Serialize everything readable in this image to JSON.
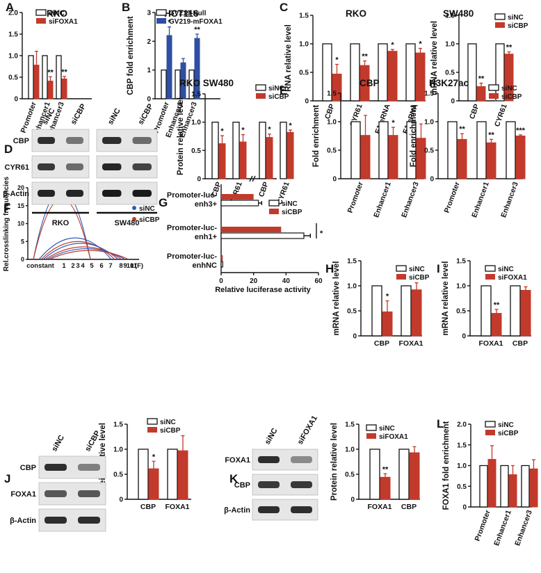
{
  "colors": {
    "white_bar": "#ffffff",
    "red_bar": "#c23a2b",
    "blue_bar": "#2e4fa3",
    "stroke": "#111111",
    "blot_bg": "#e6e6e6",
    "band": "#1a1a1a"
  },
  "chart_data": [
    {
      "id": "A",
      "type": "bar",
      "label": "A",
      "title": "RKO",
      "ylabel": "CBP fold enrichment",
      "ylim": [
        0,
        2
      ],
      "yticks": [
        "0",
        "0.5",
        "1.0",
        "1.5",
        "2.0"
      ],
      "categories": [
        "Promoter",
        "Enhancer1",
        "Enhancer3"
      ],
      "legend": [
        "siNC",
        "siFOXA1"
      ],
      "series": [
        {
          "name": "siNC",
          "values": [
            1.0,
            1.0,
            1.0
          ],
          "err": [
            0,
            0,
            0
          ]
        },
        {
          "name": "siFOXA1",
          "values": [
            0.78,
            0.41,
            0.46
          ],
          "err": [
            0.32,
            0.1,
            0.06
          ]
        }
      ],
      "sig": [
        [
          "",
          "",
          "",
          ""
        ],
        [
          "",
          "**",
          "",
          ""
        ],
        [
          "",
          "**",
          "",
          ""
        ]
      ]
    },
    {
      "id": "B",
      "type": "bar",
      "label": "B",
      "title": "HCT116",
      "ylabel": "CBP fold enrichment",
      "ylim": [
        0,
        3
      ],
      "yticks": [
        "0",
        "1",
        "2",
        "3"
      ],
      "categories": [
        "Promoter",
        "Enhancer1",
        "Enhancer3"
      ],
      "legend": [
        "GV219-Null",
        "GV219-mFOXA1"
      ],
      "series": [
        {
          "name": "GV219-Null",
          "values": [
            1.0,
            1.0,
            1.0
          ],
          "err": [
            0,
            0,
            0
          ]
        },
        {
          "name": "GV219-mFOXA1",
          "values": [
            2.2,
            1.25,
            2.1
          ],
          "err": [
            0.3,
            0.15,
            0.15
          ]
        }
      ],
      "sig": [
        "*",
        "",
        "**"
      ]
    },
    {
      "id": "C1",
      "type": "bar",
      "label": "C",
      "title": "RKO",
      "ylabel": "RNA relative level",
      "ylim": [
        0,
        1.5
      ],
      "yticks": [
        "0",
        "0.5",
        "1.0",
        "1.5"
      ],
      "categories": [
        "CBP",
        "CYR61",
        "E1-eRNA",
        "E1-eRNA"
      ],
      "series": [
        {
          "name": "siNC",
          "values": [
            1,
            1,
            1,
            1
          ],
          "err": [
            0,
            0,
            0,
            0
          ]
        },
        {
          "name": "siCBP",
          "values": [
            0.47,
            0.62,
            0.87,
            0.84
          ],
          "err": [
            0.17,
            0.08,
            0.03,
            0.08
          ]
        }
      ],
      "sig": [
        "*",
        "**",
        "*",
        "*"
      ]
    },
    {
      "id": "C2",
      "type": "bar",
      "label": "",
      "title": "SW480",
      "ylabel": "mRNA relative level",
      "ylim": [
        0,
        1.5
      ],
      "yticks": [
        "0",
        "0.5",
        "1.0",
        "1.5"
      ],
      "categories": [
        "CBP",
        "CYR61"
      ],
      "legend": [
        "siNC",
        "siCBP"
      ],
      "series": [
        {
          "name": "siNC",
          "values": [
            1,
            1
          ],
          "err": [
            0,
            0
          ]
        },
        {
          "name": "siCBP",
          "values": [
            0.25,
            0.82
          ],
          "err": [
            0.06,
            0.04
          ]
        }
      ],
      "sig": [
        "**",
        "**"
      ]
    },
    {
      "id": "D",
      "type": "bar",
      "label": "",
      "title": "RKO   SW480",
      "ylabel": "Protein relative level",
      "ylim": [
        0,
        1.5
      ],
      "yticks": [
        "0",
        "0.5",
        "1.0",
        "1.5"
      ],
      "categories": [
        "CBP",
        "CYR61",
        "CBP",
        "CYR61"
      ],
      "legend": [
        "siNC",
        "siCBP"
      ],
      "series": [
        {
          "name": "siNC",
          "values": [
            1,
            1,
            1,
            1
          ],
          "err": [
            0,
            0,
            0,
            0
          ]
        },
        {
          "name": "siCBP",
          "values": [
            0.62,
            0.65,
            0.73,
            0.82
          ],
          "err": [
            0.14,
            0.13,
            0.06,
            0.04
          ]
        }
      ],
      "sig": [
        "*",
        "*",
        "*",
        "*"
      ]
    },
    {
      "id": "E1",
      "type": "bar",
      "label": "E",
      "title": "CBP",
      "ylabel": "Fold enrichment",
      "ylim": [
        0,
        1.5
      ],
      "yticks": [
        "0",
        "0.5",
        "1.0",
        "1.5"
      ],
      "categories": [
        "Promoter",
        "Enhancer1",
        "Enhancer3"
      ],
      "series": [
        {
          "name": "siNC",
          "values": [
            1,
            1,
            1
          ],
          "err": [
            0,
            0,
            0
          ]
        },
        {
          "name": "siCBP",
          "values": [
            0.76,
            0.76,
            0.71
          ],
          "err": [
            0.35,
            0.14,
            0.25
          ]
        }
      ],
      "sig": [
        "",
        "*",
        ""
      ]
    },
    {
      "id": "E2",
      "type": "bar",
      "label": "",
      "title": "H3K27ac",
      "ylabel": "Fold enrichment",
      "ylim": [
        0,
        1.5
      ],
      "yticks": [
        "0",
        "0.5",
        "1.0",
        "1.5"
      ],
      "categories": [
        "Promoter",
        "Enhancer1",
        "Enhancer3"
      ],
      "legend": [
        "siNC",
        "siCBP"
      ],
      "series": [
        {
          "name": "siNC",
          "values": [
            1,
            1,
            1
          ],
          "err": [
            0,
            0,
            0
          ]
        },
        {
          "name": "siCBP",
          "values": [
            0.69,
            0.63,
            0.75
          ],
          "err": [
            0.1,
            0.06,
            0.02
          ]
        }
      ],
      "sig": [
        "**",
        "**",
        "***"
      ]
    },
    {
      "id": "H",
      "type": "bar",
      "label": "H",
      "title": "",
      "ylabel": "mRNA relative level",
      "ylim": [
        0,
        1.5
      ],
      "yticks": [
        "0",
        "0.5",
        "1.0",
        "1.5"
      ],
      "categories": [
        "CBP",
        "FOXA1"
      ],
      "legend": [
        "siNC",
        "siCBP"
      ],
      "series": [
        {
          "name": "siNC",
          "values": [
            1,
            1
          ],
          "err": [
            0,
            0
          ]
        },
        {
          "name": "siCBP",
          "values": [
            0.48,
            0.92
          ],
          "err": [
            0.22,
            0.14
          ]
        }
      ],
      "sig": [
        "*",
        ""
      ]
    },
    {
      "id": "I",
      "type": "bar",
      "label": "I",
      "title": "",
      "ylabel": "mRNA relative level",
      "ylim": [
        0,
        1.5
      ],
      "yticks": [
        "0",
        "0.5",
        "1.0",
        "1.5"
      ],
      "categories": [
        "FOXA1",
        "CBP"
      ],
      "legend": [
        "siNC",
        "siFOXA1"
      ],
      "series": [
        {
          "name": "siNC",
          "values": [
            1,
            1
          ],
          "err": [
            0,
            0
          ]
        },
        {
          "name": "siFOXA1",
          "values": [
            0.45,
            0.91
          ],
          "err": [
            0.08,
            0.07
          ]
        }
      ],
      "sig": [
        "**",
        ""
      ]
    },
    {
      "id": "J",
      "type": "bar",
      "label": "",
      "title": "",
      "ylabel": "Protein relative level",
      "ylim": [
        0,
        1.5
      ],
      "yticks": [
        "0",
        "0.5",
        "1.0",
        "1.5"
      ],
      "categories": [
        "CBP",
        "FOXA1"
      ],
      "legend": [
        "siNC",
        "siCBP"
      ],
      "series": [
        {
          "name": "siNC",
          "values": [
            1,
            1
          ],
          "err": [
            0,
            0
          ]
        },
        {
          "name": "siCBP",
          "values": [
            0.61,
            0.97
          ],
          "err": [
            0.15,
            0.3
          ]
        }
      ],
      "sig": [
        "*",
        ""
      ]
    },
    {
      "id": "K",
      "type": "bar",
      "label": "",
      "title": "",
      "ylabel": "Protein relative level",
      "ylim": [
        0,
        1.5
      ],
      "yticks": [
        "0",
        "0.5",
        "1.0",
        "1.5"
      ],
      "categories": [
        "FOXA1",
        "CBP"
      ],
      "legend": [
        "siNC",
        "siFOXA1"
      ],
      "series": [
        {
          "name": "siNC",
          "values": [
            1,
            1
          ],
          "err": [
            0,
            0
          ]
        },
        {
          "name": "siFOXA1",
          "values": [
            0.44,
            0.93
          ],
          "err": [
            0.07,
            0.12
          ]
        }
      ],
      "sig": [
        "**",
        ""
      ]
    },
    {
      "id": "L",
      "type": "bar",
      "label": "L",
      "title": "",
      "ylabel": "FOXA1 fold enrichment",
      "ylim": [
        0,
        2
      ],
      "yticks": [
        "0",
        "0.5",
        "1.0",
        "1.5",
        "2.0"
      ],
      "categories": [
        "Promoter",
        "Enhancer1",
        "Enhancer3"
      ],
      "legend": [
        "siNC",
        "siCBP"
      ],
      "series": [
        {
          "name": "siNC",
          "values": [
            1,
            1,
            1
          ],
          "err": [
            0,
            0,
            0
          ]
        },
        {
          "name": "siCBP",
          "values": [
            1.15,
            0.78,
            0.92
          ],
          "err": [
            0.33,
            0.22,
            0.22
          ]
        }
      ],
      "sig": [
        "",
        "",
        ""
      ]
    },
    {
      "id": "G",
      "type": "bar",
      "orientation": "horizontal",
      "label": "G",
      "xlabel": "Relative luciferase activity",
      "xlim": [
        0,
        60
      ],
      "xticks": [
        "0",
        "20",
        "40",
        "60"
      ],
      "categories": [
        "Promoter-luc-enh3+",
        "Promoter-luc-enh1+",
        "Promoter-luc-enhNC"
      ],
      "legend": [
        "siNC",
        "siCBP"
      ],
      "series": [
        {
          "name": "siNC",
          "values": [
            23,
            51,
            1
          ],
          "err": [
            2,
            4,
            0.3
          ]
        },
        {
          "name": "siCBP",
          "values": [
            20,
            37,
            1
          ],
          "err": [
            1.5,
            2,
            0.3
          ]
        }
      ],
      "sig": "*"
    },
    {
      "id": "F",
      "type": "line",
      "label": "F",
      "ylabel": "Rel.crosslinking frequencies",
      "ylim": [
        0,
        20
      ],
      "yticks": [
        "0",
        "5",
        "10",
        "15",
        "20"
      ],
      "xticks": [
        "constant",
        "1",
        "2",
        "3",
        "4",
        "5",
        "6",
        "7",
        "8",
        "9",
        "10",
        "11",
        "(F)"
      ],
      "legend": [
        "siNC",
        "siCBP"
      ],
      "peak": {
        "siNC": 19.5,
        "siCBP": 17
      },
      "sig": "**"
    }
  ],
  "blots": [
    {
      "id": "D",
      "label": "D",
      "lanes": [
        "siNC",
        "siCBP",
        "siNC",
        "siCBP"
      ],
      "rows": [
        "CBP",
        "CYR61",
        "β-Actin"
      ],
      "groups": [
        "RKO",
        "SW480"
      ]
    },
    {
      "id": "J",
      "label": "J",
      "lanes": [
        "siNC",
        "siCBP"
      ],
      "rows": [
        "CBP",
        "FOXA1",
        "β-Actin"
      ]
    },
    {
      "id": "K",
      "label": "K",
      "lanes": [
        "siNC",
        "siFOXA1"
      ],
      "rows": [
        "FOXA1",
        "CBP",
        "β-Actin"
      ]
    }
  ]
}
